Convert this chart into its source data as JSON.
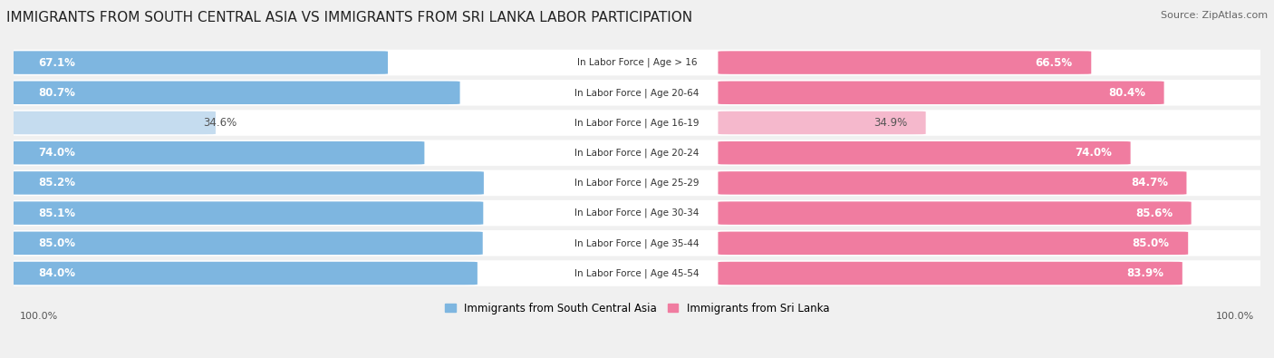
{
  "title": "IMMIGRANTS FROM SOUTH CENTRAL ASIA VS IMMIGRANTS FROM SRI LANKA LABOR PARTICIPATION",
  "source": "Source: ZipAtlas.com",
  "categories": [
    "In Labor Force | Age > 16",
    "In Labor Force | Age 20-64",
    "In Labor Force | Age 16-19",
    "In Labor Force | Age 20-24",
    "In Labor Force | Age 25-29",
    "In Labor Force | Age 30-34",
    "In Labor Force | Age 35-44",
    "In Labor Force | Age 45-54"
  ],
  "left_values": [
    67.1,
    80.7,
    34.6,
    74.0,
    85.2,
    85.1,
    85.0,
    84.0
  ],
  "right_values": [
    66.5,
    80.4,
    34.9,
    74.0,
    84.7,
    85.6,
    85.0,
    83.9
  ],
  "left_color": "#7EB6E0",
  "left_color_light": "#C5DCEF",
  "right_color": "#F07CA0",
  "right_color_light": "#F5B8CC",
  "left_label": "Immigrants from South Central Asia",
  "right_label": "Immigrants from Sri Lanka",
  "background_color": "#f0f0f0",
  "row_bg_color": "#ffffff",
  "title_fontsize": 11,
  "source_fontsize": 8,
  "axis_label_fontsize": 8,
  "bar_label_fontsize": 8.5,
  "category_fontsize": 7.5,
  "light_threshold": 50.0
}
